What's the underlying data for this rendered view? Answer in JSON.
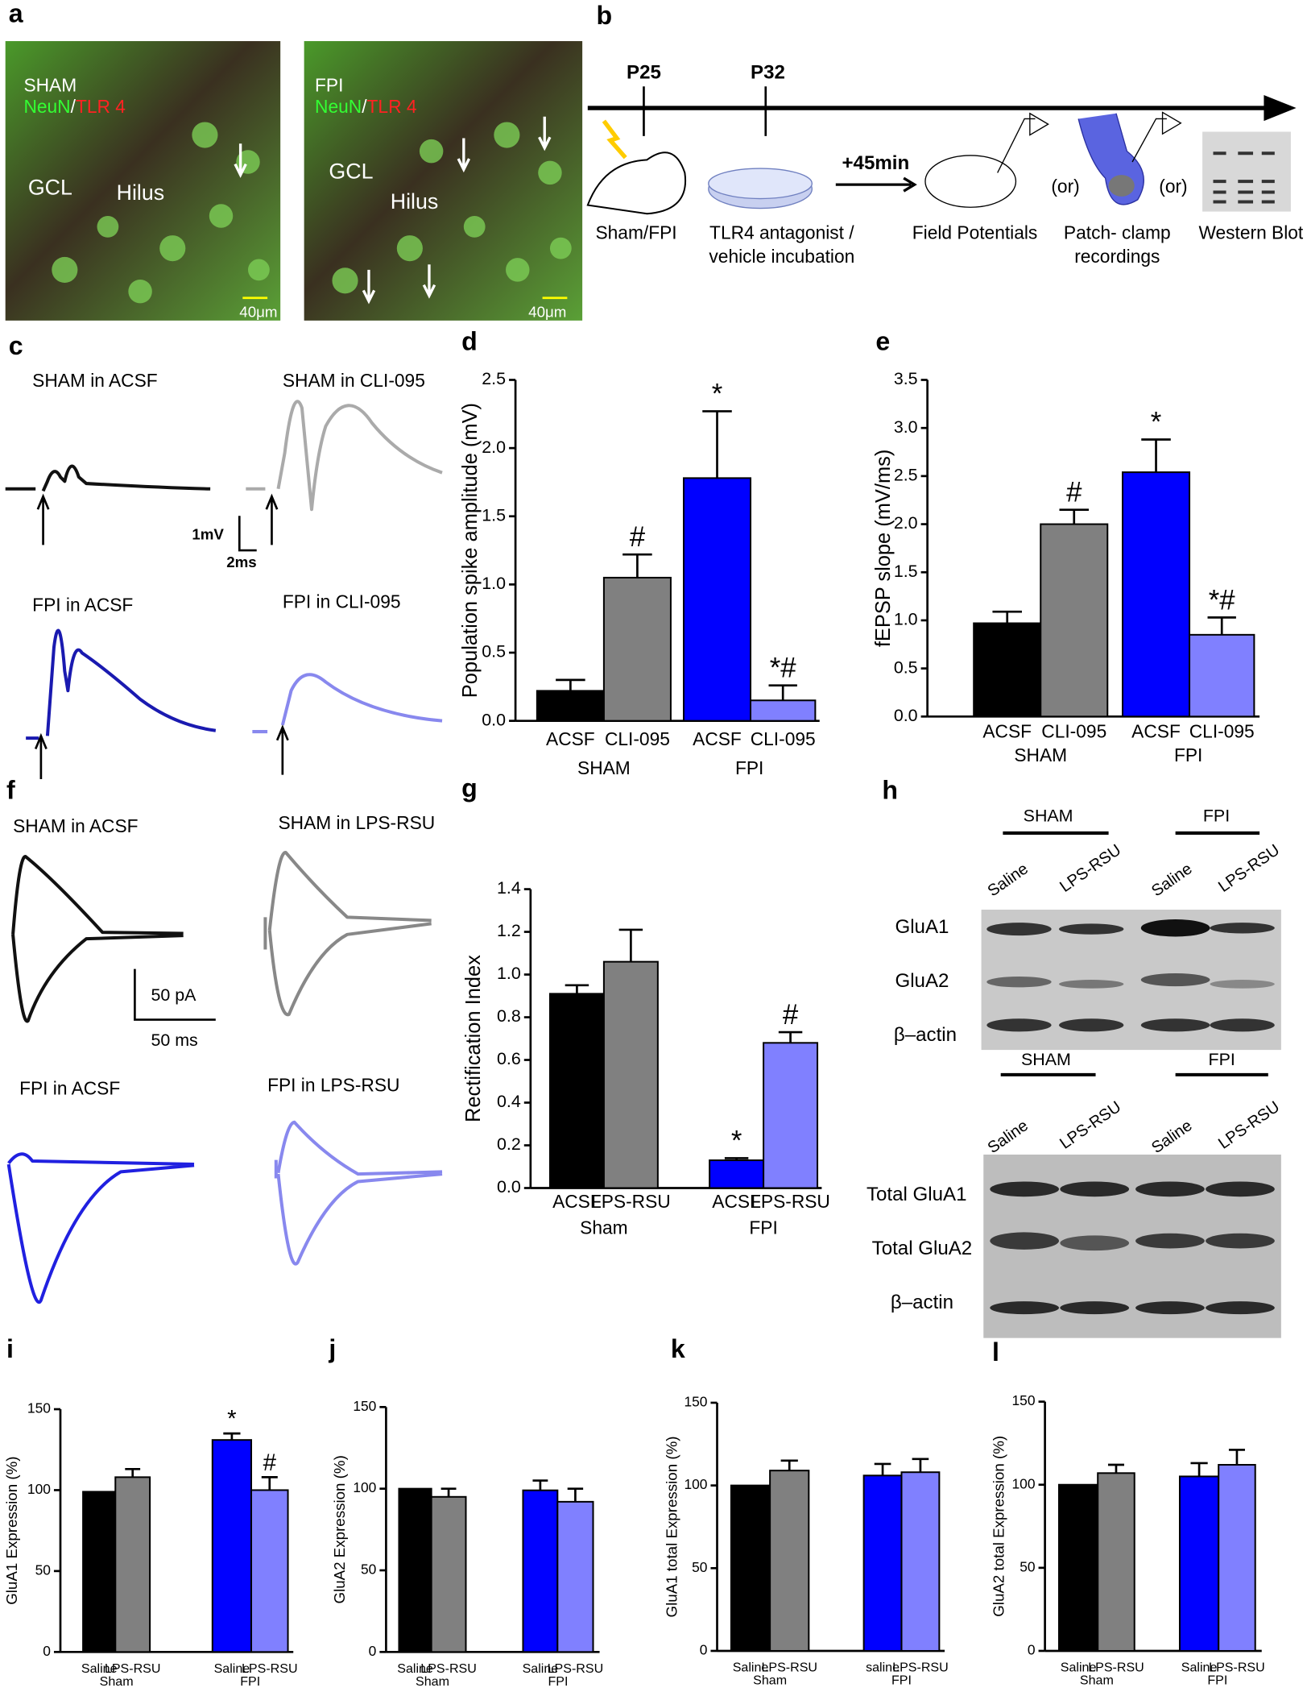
{
  "panel_a": {
    "panel": "a",
    "left": {
      "group": "SHAM",
      "stain1": "NeuN",
      "sep": "/",
      "stain2": "TLR 4",
      "region1": "GCL",
      "region2": "Hilus",
      "scale": "40μm"
    },
    "right": {
      "group": "FPI",
      "stain1": "NeuN",
      "sep": "/",
      "stain2": "TLR 4",
      "region1": "GCL",
      "region2": "Hilus",
      "scale": "40μm"
    }
  },
  "panel_b": {
    "panel": "b",
    "t1": "P25",
    "t2": "P32",
    "delay": "+45min",
    "step1": "Sham/FPI",
    "step2a": "TLR4 antagonist /",
    "step2b": "vehicle incubation",
    "step3": "Field Potentials",
    "or1": "(or)",
    "step4a": "Patch- clamp",
    "step4b": "recordings",
    "or2": "(or)",
    "step5": "Western Blot"
  },
  "panel_c": {
    "panel": "c",
    "trace1": "SHAM in ACSF",
    "trace2": "SHAM in CLI-095",
    "trace3": "FPI in ACSF",
    "trace4": "FPI in CLI-095",
    "scale_y": "1mV",
    "scale_x": "2ms"
  },
  "panel_f": {
    "panel": "f",
    "trace1": "SHAM in ACSF",
    "trace2": "SHAM in LPS-RSU",
    "trace3": "FPI in ACSF",
    "trace4": "FPI in LPS-RSU",
    "scale_y": "50 pA",
    "scale_x": "50 ms"
  },
  "panel_h": {
    "panel": "h",
    "top": {
      "groups": [
        "SHAM",
        "FPI"
      ],
      "lanes": [
        "Saline",
        "LPS-RSU",
        "Saline",
        "LPS-RSU"
      ],
      "rows": [
        "GluA1",
        "GluA2",
        "β–actin"
      ]
    },
    "bottom": {
      "groups": [
        "SHAM",
        "FPI"
      ],
      "lanes": [
        "Saline",
        "LPS-RSU",
        "Saline",
        "LPS-RSU"
      ],
      "rows": [
        "Total GluA1",
        "Total GluA2",
        "β–actin"
      ]
    }
  },
  "chart_data": [
    {
      "type": "bar",
      "panel": "d",
      "y_label": "Population spike amplitude (mV)",
      "categories": [
        "ACSF",
        "CLI-095",
        "ACSF",
        "CLI-095"
      ],
      "groups": [
        "SHAM",
        "FPI"
      ],
      "values": [
        0.22,
        1.05,
        1.78,
        0.15
      ],
      "errors": [
        0.08,
        0.17,
        0.49,
        0.11
      ],
      "colors": [
        "#000000",
        "#808080",
        "#0000ff",
        "#8080ff"
      ],
      "significance": [
        null,
        "#",
        "*",
        "*#"
      ],
      "ylim": [
        0,
        2.5
      ],
      "yticks": [
        {
          "value": 0,
          "label": "0.0"
        },
        0.5,
        {
          "value": 1,
          "label": "1.0"
        },
        1.5,
        {
          "value": 2,
          "label": "2.0"
        },
        2.5
      ]
    },
    {
      "type": "bar",
      "panel": "e",
      "y_label": "fEPSP slope (mV/ms)",
      "categories": [
        "ACSF",
        "CLI-095",
        "ACSF",
        "CLI-095"
      ],
      "groups": [
        "SHAM",
        "FPI"
      ],
      "values": [
        0.97,
        2.0,
        2.54,
        0.85
      ],
      "errors": [
        0.12,
        0.15,
        0.34,
        0.18
      ],
      "colors": [
        "#000000",
        "#808080",
        "#0000ff",
        "#8080ff"
      ],
      "significance": [
        null,
        "#",
        "*",
        "*#"
      ],
      "ylim": [
        0,
        3.5
      ],
      "yticks": [
        {
          "value": 0,
          "label": "0.0"
        },
        0.5,
        {
          "value": 1,
          "label": "1.0"
        },
        1.5,
        {
          "value": 2,
          "label": "2.0"
        },
        2.5,
        {
          "value": 3,
          "label": "3.0"
        },
        3.5
      ]
    },
    {
      "type": "bar",
      "panel": "g",
      "y_label": "Rectification Index",
      "categories": [
        "ACSF",
        "LPS-RSU",
        "ACSF",
        "LPS-RSU"
      ],
      "groups": [
        "Sham",
        "FPI"
      ],
      "values": [
        0.91,
        1.06,
        0.13,
        0.68
      ],
      "errors": [
        0.04,
        0.15,
        0.01,
        0.05
      ],
      "colors": [
        "#000000",
        "#808080",
        "#0000ff",
        "#8080ff"
      ],
      "significance": [
        null,
        null,
        "*",
        "#"
      ],
      "ylim": [
        0,
        1.4
      ],
      "yticks": [
        {
          "value": 0,
          "label": "0.0"
        },
        0.2,
        0.4,
        0.6,
        0.8,
        {
          "value": 1,
          "label": "1.0"
        },
        1.2,
        1.4
      ]
    },
    {
      "type": "bar",
      "panel": "i",
      "y_label": "GluA1 Expression (%)",
      "categories": [
        "Saline",
        "LPS-RSU",
        "Saline",
        "LPS-RSU"
      ],
      "groups": [
        "Sham",
        "FPI"
      ],
      "values": [
        99,
        108,
        131,
        100
      ],
      "errors": [
        null,
        5,
        4,
        8
      ],
      "colors": [
        "#000000",
        "#808080",
        "#0000ff",
        "#8080ff"
      ],
      "significance": [
        null,
        null,
        "*",
        "#"
      ],
      "ylim": [
        0,
        150
      ],
      "yticks": [
        0,
        50,
        100,
        150
      ]
    },
    {
      "type": "bar",
      "panel": "j",
      "y_label": "GluA2 Expression (%)",
      "categories": [
        "Saline",
        "LPS-RSU",
        "Saline",
        "LPS-RSU"
      ],
      "groups": [
        "Sham",
        "FPI"
      ],
      "values": [
        100,
        95,
        99,
        92
      ],
      "errors": [
        null,
        5,
        6,
        8
      ],
      "colors": [
        "#000000",
        "#808080",
        "#0000ff",
        "#8080ff"
      ],
      "significance": [
        null,
        null,
        null,
        null
      ],
      "ylim": [
        0,
        150
      ],
      "yticks": [
        0,
        50,
        100,
        150
      ]
    },
    {
      "type": "bar",
      "panel": "k",
      "y_label": "GluA1 total Expression (%)",
      "categories": [
        "Saline",
        "LPS-RSU",
        "saline",
        "LPS-RSU"
      ],
      "groups": [
        "Sham",
        "FPI"
      ],
      "values": [
        100,
        109,
        106,
        108
      ],
      "errors": [
        null,
        6,
        7,
        8
      ],
      "colors": [
        "#000000",
        "#808080",
        "#0000ff",
        "#8080ff"
      ],
      "significance": [
        null,
        null,
        null,
        null
      ],
      "ylim": [
        0,
        150
      ],
      "yticks": [
        0,
        50,
        100,
        150
      ]
    },
    {
      "type": "bar",
      "panel": "l",
      "y_label": "GluA2 total Expression (%)",
      "categories": [
        "Saline",
        "LPS-RSU",
        "Saline",
        "LPS-RSU"
      ],
      "groups": [
        "Sham",
        "FPI"
      ],
      "values": [
        100,
        107,
        105,
        112
      ],
      "errors": [
        null,
        5,
        8,
        9
      ],
      "colors": [
        "#000000",
        "#808080",
        "#0000ff",
        "#8080ff"
      ],
      "significance": [
        null,
        null,
        null,
        null
      ],
      "ylim": [
        0,
        150
      ],
      "yticks": [
        0,
        50,
        100,
        150
      ]
    }
  ]
}
